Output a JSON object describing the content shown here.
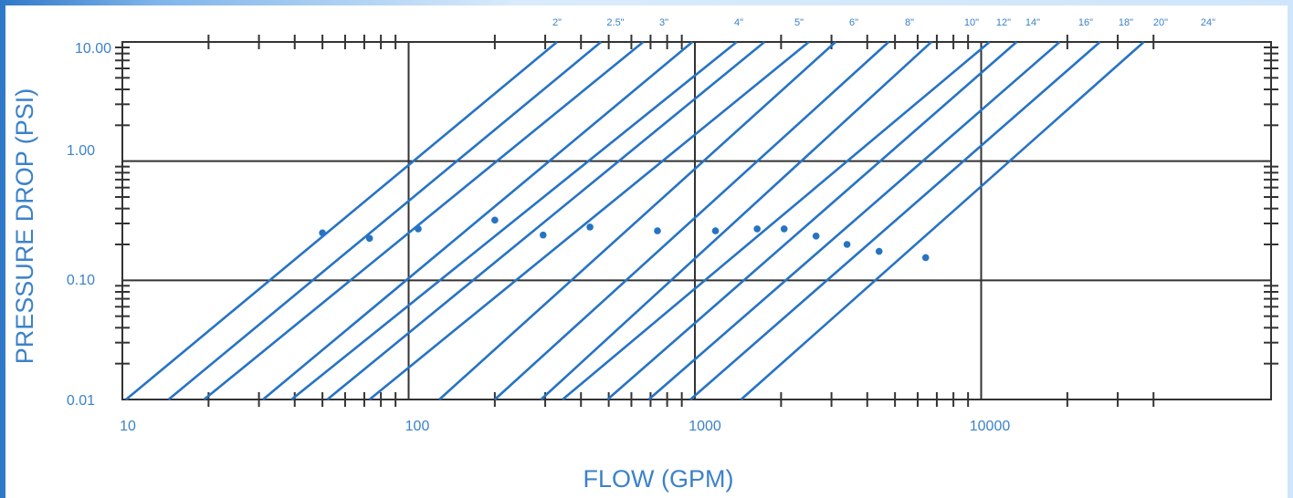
{
  "chart_data": {
    "type": "line",
    "title": "",
    "xlabel": "FLOW (GPM)",
    "ylabel": "PRESSURE DROP (PSI)",
    "x_scale": "log",
    "y_scale": "log",
    "xlim": [
      10,
      40000
    ],
    "ylim": [
      0.01,
      10
    ],
    "x_tick_labels": [
      "10",
      "100",
      "1000",
      "10000"
    ],
    "y_tick_labels": [
      "0.01",
      "0.10",
      "1.00",
      "10.00"
    ],
    "grid": true,
    "line_color": "#2673c4",
    "label_color": "#3b82c9",
    "series": [
      {
        "name": "2\"",
        "x": [
          10.3,
          330
        ],
        "y": [
          0.01,
          10
        ],
        "marker": [
          50,
          0.25
        ]
      },
      {
        "name": "2.5\"",
        "x": [
          14.5,
          470
        ],
        "y": [
          0.01,
          10
        ],
        "marker": [
          73,
          0.225
        ]
      },
      {
        "name": "3\"",
        "x": [
          19.3,
          660
        ],
        "y": [
          0.01,
          10
        ],
        "marker": [
          108,
          0.27
        ]
      },
      {
        "name": "",
        "x": [
          31,
          980
        ],
        "y": [
          0.01,
          10
        ],
        "marker": [
          200,
          0.32
        ]
      },
      {
        "name": "4\"",
        "x": [
          39,
          1400
        ],
        "y": [
          0.01,
          10
        ],
        "marker": [
          295,
          0.24
        ]
      },
      {
        "name": "",
        "x": [
          52,
          1750
        ],
        "y": [
          0.01,
          10
        ],
        "marker": [
          430,
          0.28
        ]
      },
      {
        "name": "5\"",
        "x": [
          73,
          2500
        ],
        "y": [
          0.01,
          10
        ],
        "marker": [
          740,
          0.26
        ]
      },
      {
        "name": "6\"",
        "x": [
          128,
          3100
        ],
        "y": [
          0.01,
          10
        ],
        "marker": [
          1180,
          0.26
        ]
      },
      {
        "name": "",
        "x": [
          200,
          4750
        ],
        "y": [
          0.01,
          10
        ],
        "marker": [
          1650,
          0.27
        ]
      },
      {
        "name": "8\"",
        "x": [
          290,
          6700
        ],
        "y": [
          0.01,
          10
        ],
        "marker": [
          2050,
          0.27
        ]
      },
      {
        "name": "10\"",
        "x": [
          345,
          10700
        ],
        "y": [
          0.01,
          10
        ],
        "marker": [
          2650,
          0.235
        ]
      },
      {
        "name": "12\"",
        "x": [
          495,
          13300
        ],
        "y": [
          0.01,
          10
        ],
        "marker": [
          3400,
          0.2
        ]
      },
      {
        "name": "14\"",
        "x": [
          690,
          18800
        ],
        "y": [
          0.01,
          10
        ],
        "marker": [
          4400,
          0.175
        ]
      },
      {
        "name": "16\"",
        "x": [
          965,
          26000
        ],
        "y": [
          0.01,
          10
        ],
        "marker": [
          6400,
          0.155
        ]
      },
      {
        "name": "18\"",
        "x": [
          1450,
          37000
        ],
        "y": [
          0.01,
          10
        ],
        "marker": null
      }
    ],
    "top_size_labels": [
      "2\"",
      "2.5\"",
      "3\"",
      "4\"",
      "5\"",
      "6\"",
      "8\"",
      "10\"",
      "12\"",
      "14\"",
      "16\"",
      "18\"",
      "20\"",
      "24\""
    ]
  }
}
